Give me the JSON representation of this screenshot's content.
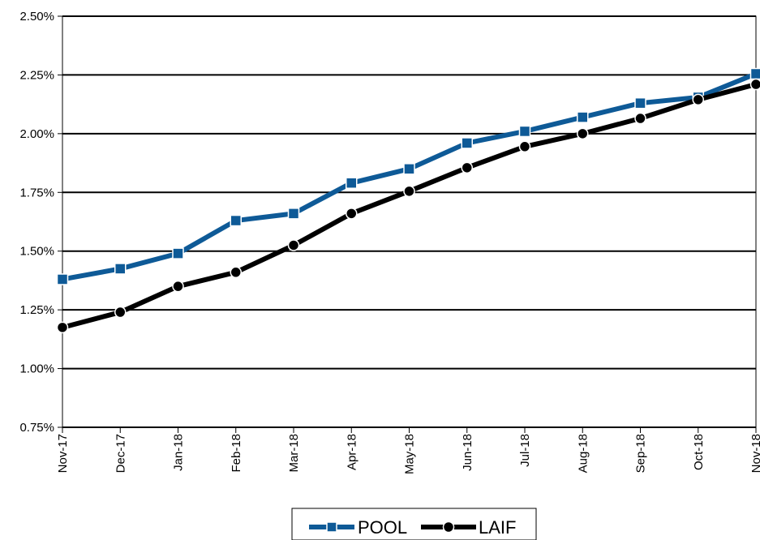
{
  "chart_data": {
    "type": "line",
    "categories": [
      "Nov-17",
      "Dec-17",
      "Jan-18",
      "Feb-18",
      "Mar-18",
      "Apr-18",
      "May-18",
      "Jun-18",
      "Jul-18",
      "Aug-18",
      "Sep-18",
      "Oct-18",
      "Nov-18"
    ],
    "series": [
      {
        "name": "POOL",
        "color": "#0e5a97",
        "marker": "square",
        "values": [
          1.38,
          1.425,
          1.49,
          1.63,
          1.66,
          1.79,
          1.85,
          1.96,
          2.01,
          2.07,
          2.13,
          2.155,
          2.255
        ]
      },
      {
        "name": "LAIF",
        "color": "#000000",
        "marker": "circle",
        "values": [
          1.175,
          1.24,
          1.35,
          1.41,
          1.525,
          1.66,
          1.755,
          1.855,
          1.945,
          2.0,
          2.065,
          2.145,
          2.21
        ]
      }
    ],
    "yticks": [
      "0.75%",
      "1.00%",
      "1.25%",
      "1.50%",
      "1.75%",
      "2.00%",
      "2.25%",
      "2.50%"
    ],
    "ylim": [
      0.75,
      2.5
    ],
    "grid": true,
    "legend_position": "bottom-center"
  }
}
